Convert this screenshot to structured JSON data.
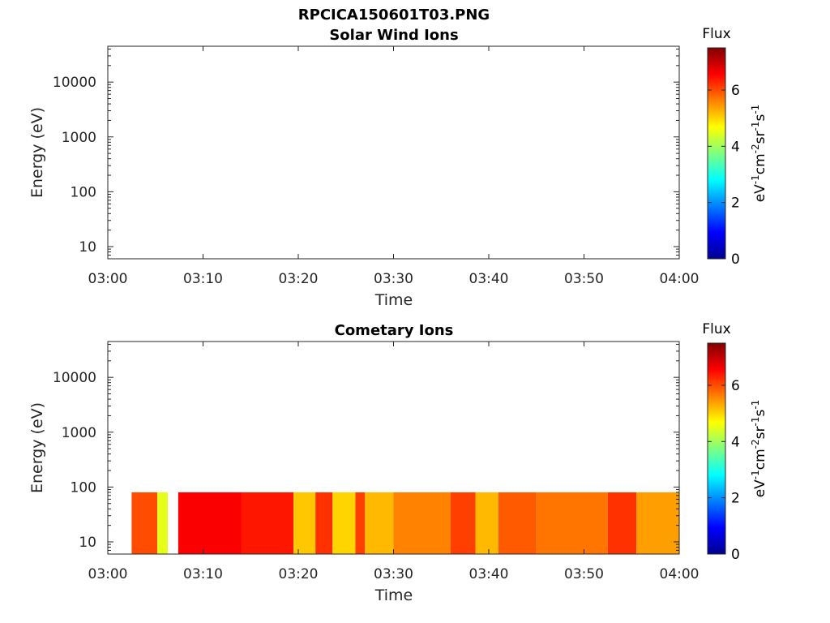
{
  "figure_title": "RPCICA150601T03.PNG",
  "colorbar": {
    "label": "Flux",
    "unit_text": "eV",
    "unit_parts": [
      {
        "t": "eV",
        "sup": false
      },
      {
        "t": "-1",
        "sup": true
      },
      {
        "t": "cm",
        "sup": false
      },
      {
        "t": "-2",
        "sup": true
      },
      {
        "t": "sr",
        "sup": false
      },
      {
        "t": "-1",
        "sup": true
      },
      {
        "t": "s",
        "sup": false
      },
      {
        "t": "-1",
        "sup": true
      }
    ],
    "ticks": [
      "0",
      "2",
      "4",
      "6"
    ],
    "range": [
      0,
      7.5
    ],
    "colormap": "jet"
  },
  "chart_data": [
    {
      "type": "heatmap",
      "title": "Solar Wind Ions",
      "xlabel": "Time",
      "ylabel": "Energy (eV)",
      "x_ticks": [
        "03:00",
        "03:10",
        "03:20",
        "03:30",
        "03:40",
        "03:50",
        "04:00"
      ],
      "x_range_min": [
        0,
        60
      ],
      "y_ticks": [
        "10",
        "100",
        "1000",
        "10000"
      ],
      "y_scale": "log",
      "y_range": [
        6,
        45000
      ],
      "intervals": []
    },
    {
      "type": "heatmap",
      "title": "Cometary Ions",
      "xlabel": "Time",
      "ylabel": "Energy (eV)",
      "x_ticks": [
        "03:00",
        "03:10",
        "03:20",
        "03:30",
        "03:40",
        "03:50",
        "04:00"
      ],
      "x_range_min": [
        0,
        60
      ],
      "y_ticks": [
        "10",
        "100",
        "1000",
        "10000"
      ],
      "y_scale": "log",
      "y_range": [
        6,
        45000
      ],
      "energy_max_eV": 80,
      "intervals": [
        {
          "start_min": 2.5,
          "end_min": 5.2,
          "flux": 6.0
        },
        {
          "start_min": 5.2,
          "end_min": 6.3,
          "flux": 4.5
        },
        {
          "start_min": 7.4,
          "end_min": 14.0,
          "flux": 6.6
        },
        {
          "start_min": 14.0,
          "end_min": 19.5,
          "flux": 6.4
        },
        {
          "start_min": 19.5,
          "end_min": 21.8,
          "flux": 5.1
        },
        {
          "start_min": 21.8,
          "end_min": 23.6,
          "flux": 6.2
        },
        {
          "start_min": 23.6,
          "end_min": 26.0,
          "flux": 5.0
        },
        {
          "start_min": 26.0,
          "end_min": 27.0,
          "flux": 6.1
        },
        {
          "start_min": 27.0,
          "end_min": 30.0,
          "flux": 5.2
        },
        {
          "start_min": 30.0,
          "end_min": 36.0,
          "flux": 5.6
        },
        {
          "start_min": 36.0,
          "end_min": 38.6,
          "flux": 6.1
        },
        {
          "start_min": 38.6,
          "end_min": 41.0,
          "flux": 5.2
        },
        {
          "start_min": 41.0,
          "end_min": 45.0,
          "flux": 5.9
        },
        {
          "start_min": 45.0,
          "end_min": 52.5,
          "flux": 5.7
        },
        {
          "start_min": 52.5,
          "end_min": 55.5,
          "flux": 6.2
        },
        {
          "start_min": 55.5,
          "end_min": 60.0,
          "flux": 5.4
        }
      ]
    }
  ]
}
